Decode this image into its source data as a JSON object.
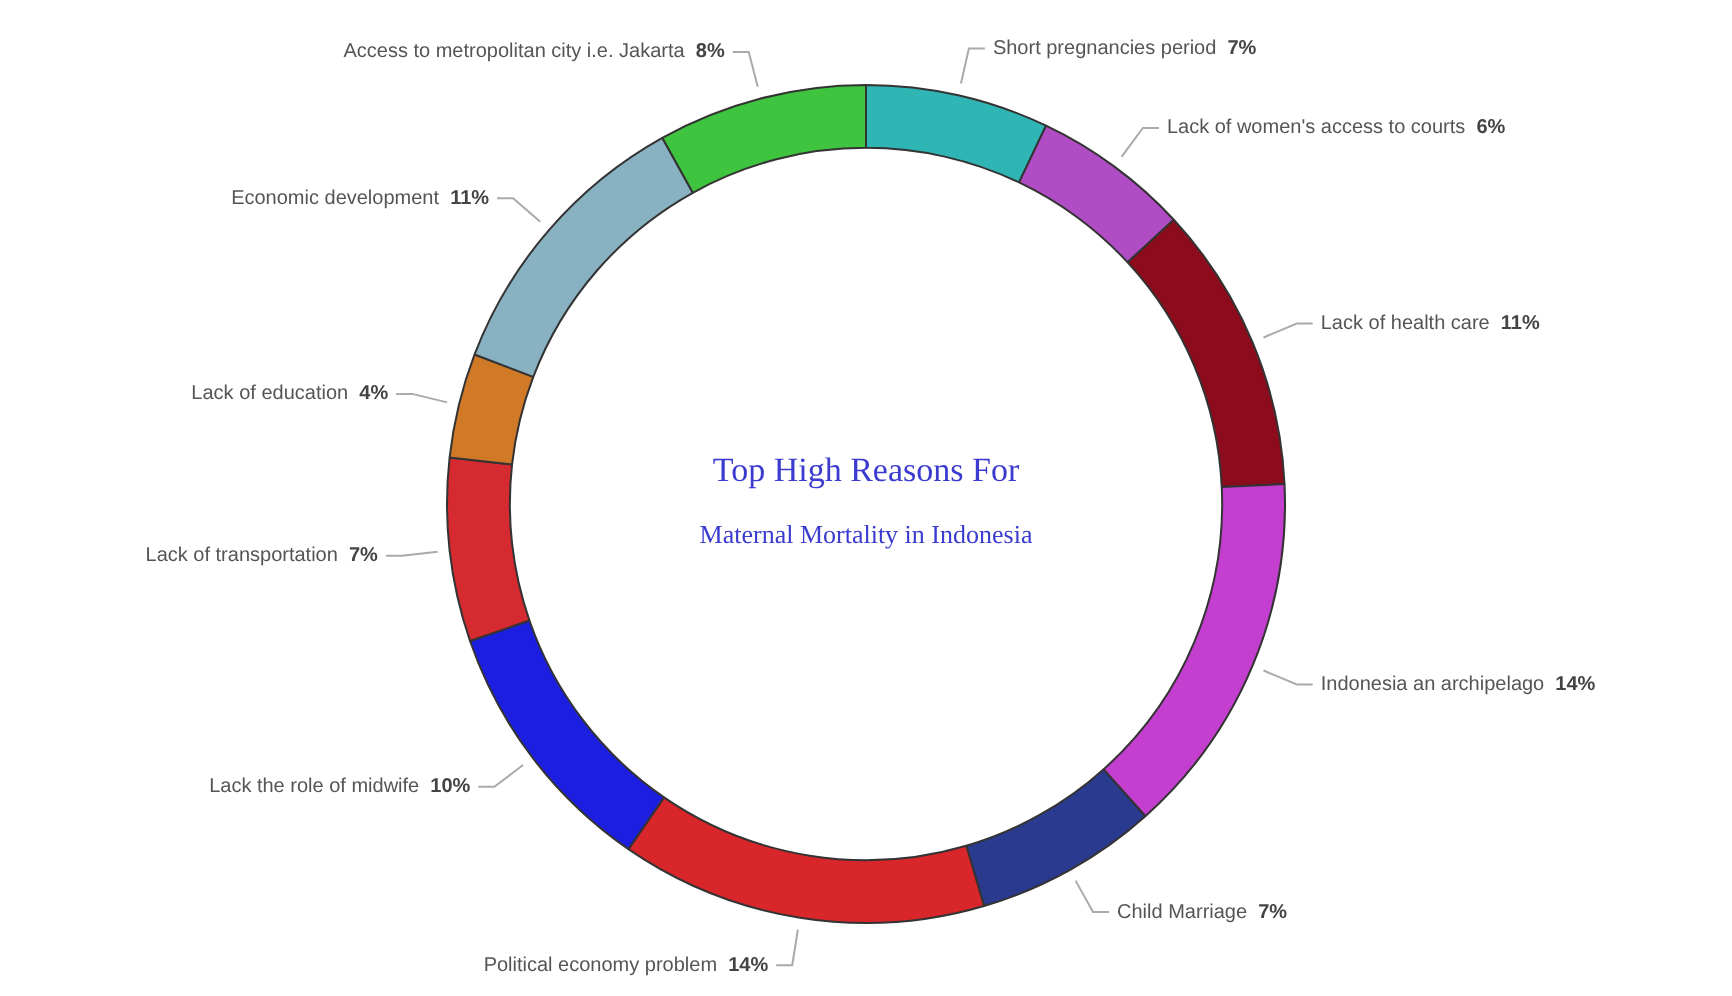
{
  "chart_data": {
    "type": "donut",
    "title": "Top High Reasons For",
    "subtitle": "Maternal Mortality in Indonesia",
    "categories": [
      "Short pregnancies period",
      "Lack of women's access to courts",
      "Lack of health care",
      "Indonesia an archipelago",
      "Child Marriage",
      "Political economy problem",
      "Lack the role of midwife",
      "Lack of transportation",
      "Lack of education",
      "Economic development",
      "Access to metropolitan city i.e. Jakarta"
    ],
    "values": [
      7,
      6,
      11,
      14,
      7,
      14,
      10,
      7,
      4,
      11,
      8
    ],
    "value_labels": [
      "7%",
      "6%",
      "11%",
      "14%",
      "7%",
      "14%",
      "10%",
      "7%",
      "4%",
      "11%",
      "8%"
    ],
    "colors": [
      "#2fb5b3",
      "#b04cc4",
      "#8c0b1c",
      "#c43ed0",
      "#2a3a8e",
      "#d8262a",
      "#1c1ee0",
      "#d42a30",
      "#d07a28",
      "#88b2c2",
      "#3ec43e"
    ],
    "legend": false
  }
}
